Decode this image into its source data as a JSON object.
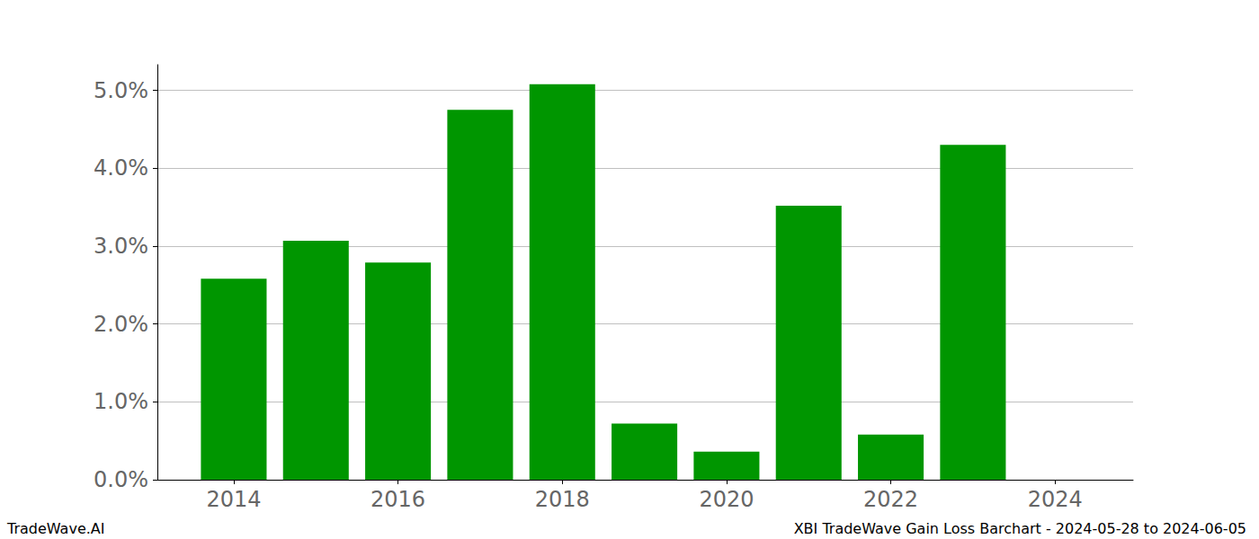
{
  "chart_data": {
    "type": "bar",
    "x": [
      2014,
      2015,
      2016,
      2017,
      2018,
      2019,
      2020,
      2021,
      2022,
      2023
    ],
    "values": [
      2.58,
      3.07,
      2.79,
      4.75,
      5.08,
      0.72,
      0.36,
      3.52,
      0.58,
      4.3
    ],
    "color": "#009600",
    "xlim": [
      2013.07,
      2024.95
    ],
    "xticks": [
      2014,
      2016,
      2018,
      2020,
      2022,
      2024
    ],
    "ylim": [
      0,
      5.33
    ],
    "yticks": [
      {
        "value": 0,
        "label": "0.0%"
      },
      {
        "value": 1,
        "label": "1.0%"
      },
      {
        "value": 2,
        "label": "2.0%"
      },
      {
        "value": 3,
        "label": "3.0%"
      },
      {
        "value": 4,
        "label": "4.0%"
      },
      {
        "value": 5,
        "label": "5.0%"
      }
    ],
    "grid": true,
    "annotations": [
      "TradeWave.AI",
      "XBI TradeWave Gain Loss Barchart - 2024-05-28 to 2024-06-05"
    ]
  }
}
